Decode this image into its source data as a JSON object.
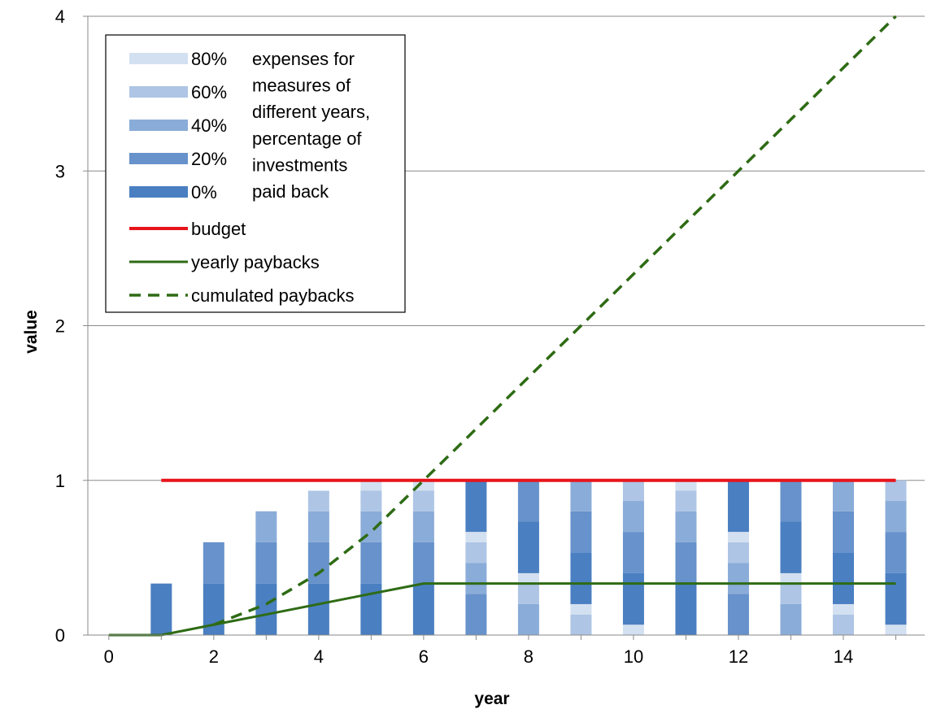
{
  "chart_data": {
    "type": "bar",
    "xlabel": "year",
    "ylabel": "value",
    "xlim": [
      -0.4,
      15.55
    ],
    "ylim": [
      0,
      4
    ],
    "x_ticks": [
      "0",
      "2",
      "4",
      "6",
      "8",
      "10",
      "12",
      "14"
    ],
    "y_ticks": [
      "0",
      "1",
      "2",
      "3",
      "4"
    ],
    "grid": "horizontal",
    "legend_position": "top-left",
    "years": [
      1,
      2,
      3,
      4,
      5,
      6,
      7,
      8,
      9,
      10,
      11,
      12,
      13,
      14,
      15
    ],
    "shade_colors": {
      "0%": "#4a7fc1",
      "20%": "#6792cb",
      "40%": "#8aacd8",
      "60%": "#aec5e5",
      "80%": "#d3e0f1"
    },
    "bar_segments": [
      [
        [
          "0%",
          0.333
        ]
      ],
      [
        [
          "0%",
          0.333
        ],
        [
          "20%",
          0.267
        ]
      ],
      [
        [
          "0%",
          0.333
        ],
        [
          "20%",
          0.267
        ],
        [
          "40%",
          0.2
        ]
      ],
      [
        [
          "0%",
          0.333
        ],
        [
          "20%",
          0.267
        ],
        [
          "40%",
          0.2
        ],
        [
          "60%",
          0.133
        ]
      ],
      [
        [
          "0%",
          0.333
        ],
        [
          "20%",
          0.267
        ],
        [
          "40%",
          0.2
        ],
        [
          "60%",
          0.133
        ],
        [
          "80%",
          0.067
        ]
      ],
      [
        [
          "0%",
          0.333
        ],
        [
          "20%",
          0.267
        ],
        [
          "40%",
          0.2
        ],
        [
          "60%",
          0.133
        ],
        [
          "80%",
          0.067
        ]
      ],
      [
        [
          "20%",
          0.267
        ],
        [
          "40%",
          0.2
        ],
        [
          "60%",
          0.133
        ],
        [
          "80%",
          0.067
        ],
        [
          "0%",
          0.333
        ]
      ],
      [
        [
          "40%",
          0.2
        ],
        [
          "60%",
          0.133
        ],
        [
          "80%",
          0.067
        ],
        [
          "0%",
          0.333
        ],
        [
          "20%",
          0.267
        ]
      ],
      [
        [
          "60%",
          0.133
        ],
        [
          "80%",
          0.067
        ],
        [
          "0%",
          0.333
        ],
        [
          "20%",
          0.267
        ],
        [
          "40%",
          0.2
        ]
      ],
      [
        [
          "80%",
          0.067
        ],
        [
          "0%",
          0.333
        ],
        [
          "20%",
          0.267
        ],
        [
          "40%",
          0.2
        ],
        [
          "60%",
          0.133
        ]
      ],
      [
        [
          "0%",
          0.333
        ],
        [
          "20%",
          0.267
        ],
        [
          "40%",
          0.2
        ],
        [
          "60%",
          0.133
        ],
        [
          "80%",
          0.067
        ]
      ],
      [
        [
          "20%",
          0.267
        ],
        [
          "40%",
          0.2
        ],
        [
          "60%",
          0.133
        ],
        [
          "80%",
          0.067
        ],
        [
          "0%",
          0.333
        ]
      ],
      [
        [
          "40%",
          0.2
        ],
        [
          "60%",
          0.133
        ],
        [
          "80%",
          0.067
        ],
        [
          "0%",
          0.333
        ],
        [
          "20%",
          0.267
        ]
      ],
      [
        [
          "60%",
          0.133
        ],
        [
          "80%",
          0.067
        ],
        [
          "0%",
          0.333
        ],
        [
          "20%",
          0.267
        ],
        [
          "40%",
          0.2
        ]
      ],
      [
        [
          "80%",
          0.067
        ],
        [
          "0%",
          0.333
        ],
        [
          "20%",
          0.267
        ],
        [
          "40%",
          0.2
        ],
        [
          "60%",
          0.133
        ]
      ]
    ],
    "budget": {
      "x": [
        1,
        15
      ],
      "y": [
        1,
        1
      ],
      "color": "#e8141b"
    },
    "yearly_paybacks": {
      "x": [
        0,
        1,
        2,
        3,
        4,
        5,
        6,
        7,
        8,
        9,
        10,
        11,
        12,
        13,
        14,
        15
      ],
      "y": [
        0,
        0,
        0.067,
        0.133,
        0.2,
        0.267,
        0.333,
        0.333,
        0.333,
        0.333,
        0.333,
        0.333,
        0.333,
        0.333,
        0.333,
        0.333
      ],
      "color": "#2e6b14"
    },
    "cumulated_paybacks": {
      "x": [
        2,
        3,
        4,
        5,
        6,
        7,
        8,
        9,
        10,
        11,
        12,
        13,
        14,
        15
      ],
      "y": [
        0.067,
        0.2,
        0.4,
        0.667,
        1.0,
        1.333,
        1.667,
        2.0,
        2.333,
        2.667,
        3.0,
        3.333,
        3.667,
        4.0
      ],
      "color": "#2e6b14"
    },
    "legend": {
      "shade_labels": [
        "80%",
        "60%",
        "40%",
        "20%",
        "0%"
      ],
      "shade_caption": [
        "expenses for",
        "measures of",
        "different years,",
        "percentage of",
        "investments",
        "paid back"
      ],
      "line_labels": [
        "budget",
        "yearly paybacks",
        "cumulated paybacks"
      ]
    }
  }
}
